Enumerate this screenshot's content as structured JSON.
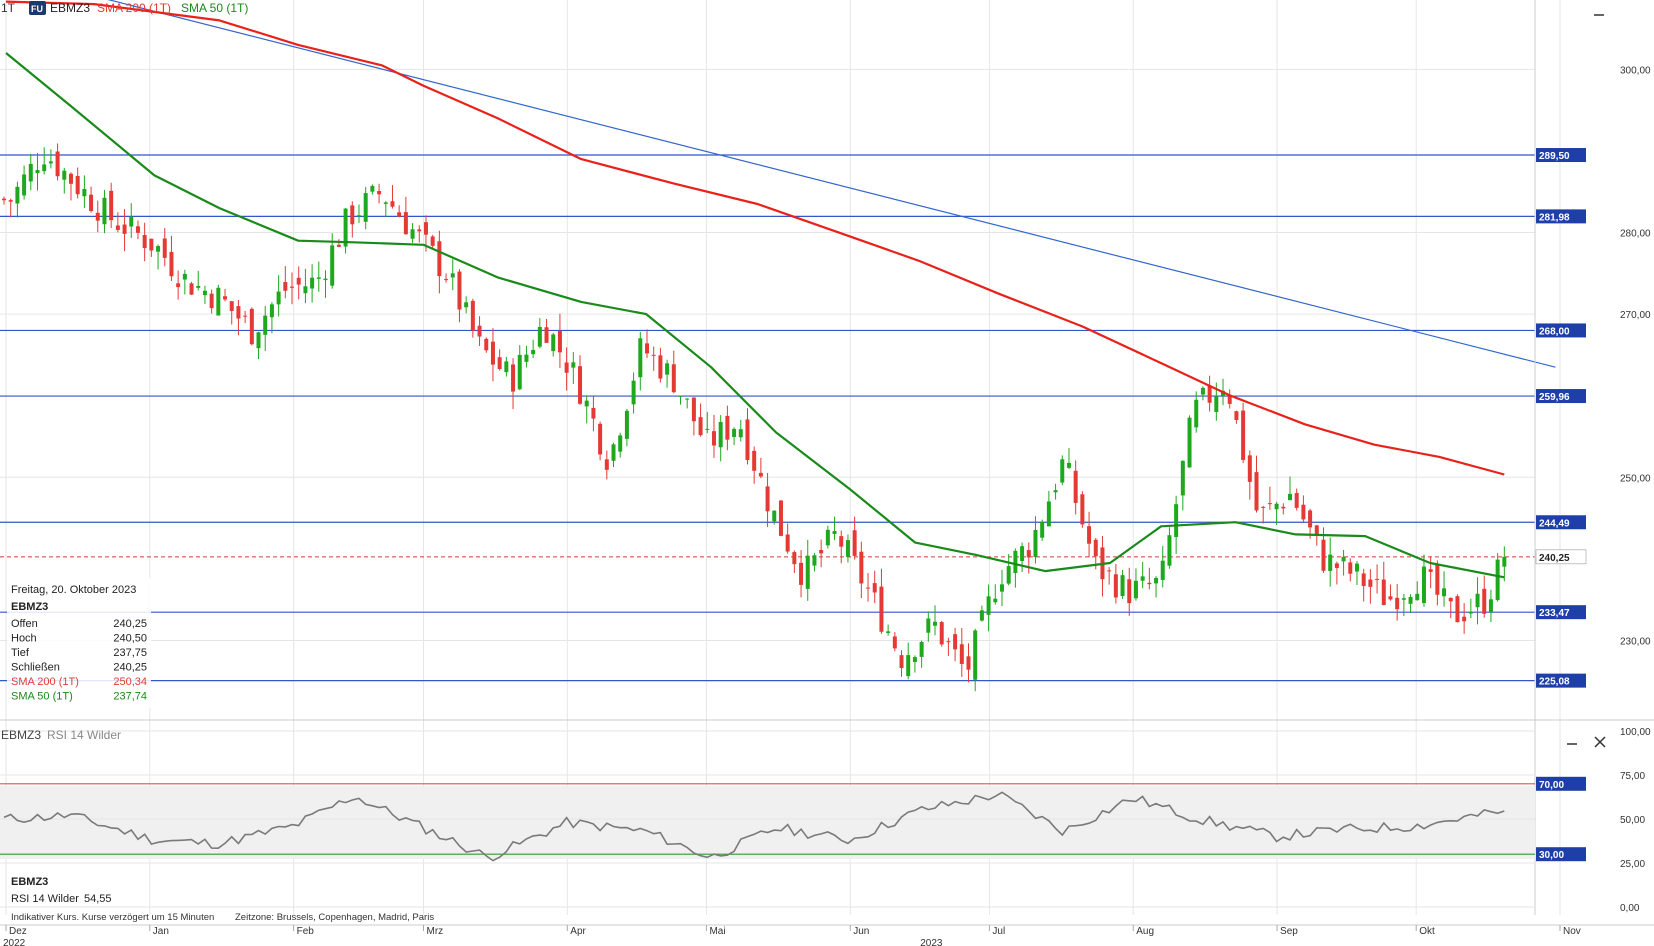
{
  "header": {
    "interval": "1T",
    "badge": "FU",
    "symbol": "EBMZ3",
    "sma200_label": "SMA 200 (1T)",
    "sma50_label": "SMA 50 (1T)"
  },
  "colors": {
    "up": "#1ea81e",
    "down": "#e53935",
    "sma200": "#e8221a",
    "sma50": "#1a8a1a",
    "level": "#3355cc",
    "trend": "#3366cc",
    "rsi": "#7a7a7a",
    "rsi_upper": "#d9534f",
    "rsi_lower": "#2e9e2e"
  },
  "info_box": {
    "date": "Freitag, 20. Oktober 2023",
    "symbol": "EBMZ3",
    "rows": [
      {
        "label": "Offen",
        "value": "240,25",
        "color": "#222222"
      },
      {
        "label": "Hoch",
        "value": "240,50",
        "color": "#222222"
      },
      {
        "label": "Tief",
        "value": "237,75",
        "color": "#222222"
      },
      {
        "label": "Schließen",
        "value": "240,25",
        "color": "#222222"
      },
      {
        "label": "SMA 200 (1T)",
        "value": "250,34",
        "color": "#e53935"
      },
      {
        "label": "SMA 50 (1T)",
        "value": "237,74",
        "color": "#1a8a1a"
      }
    ]
  },
  "rsi_panel": {
    "title_symbol": "EBMZ3",
    "title_indicator": "RSI 14 Wilder",
    "info_symbol": "EBMZ3",
    "info_label": "RSI 14 Wilder",
    "info_value": "54,55"
  },
  "footer": {
    "note": "Indikativer Kurs. Kurse verzögert um 15 Minuten",
    "timezone": "Zeitzone: Brussels, Copenhagen, Madrid, Paris"
  },
  "x_axis": {
    "months": [
      "Dez",
      "Jan",
      "Feb",
      "Mrz",
      "Apr",
      "Mai",
      "Jun",
      "Jul",
      "Aug",
      "Sep",
      "Okt",
      "Nov"
    ],
    "years": [
      "2022",
      "2023"
    ]
  },
  "price_axis": {
    "ticks": [
      "300,00",
      "280,00",
      "270,00",
      "250,00",
      "230,00"
    ]
  },
  "rsi_axis": {
    "ticks": [
      "100,00",
      "75,00",
      "50,00",
      "25,00",
      "0,00"
    ]
  },
  "levels": [
    {
      "label": "289,50"
    },
    {
      "label": "281,98"
    },
    {
      "label": "268,00"
    },
    {
      "label": "259,96"
    },
    {
      "label": "244,49"
    },
    {
      "label": "233,47"
    },
    {
      "label": "225,08"
    }
  ],
  "last_price": {
    "label": "240,25"
  },
  "rsi_levels": [
    {
      "label": "70,00"
    },
    {
      "label": "30,00"
    }
  ],
  "chart_data": {
    "type": "candlestick",
    "symbol": "EBMZ3",
    "interval": "1T",
    "ylim": [
      220.5,
      308.5
    ],
    "rsi_ylim": [
      0,
      100
    ],
    "horizontal_levels": [
      289.5,
      281.98,
      268.0,
      259.96,
      244.49,
      233.47,
      225.08
    ],
    "last_close": 240.25,
    "trend_line": {
      "start": {
        "date": "2022-12-13",
        "value": 310.0
      },
      "end": {
        "date": "2023-10-31",
        "value": 263.5
      }
    },
    "ohlc_last": {
      "date": "2023-10-20",
      "open": 240.25,
      "high": 240.5,
      "low": 237.75,
      "close": 240.25
    },
    "sma200_last": 250.34,
    "sma50_last": 237.74,
    "rsi_last": 54.55,
    "rsi_levels": [
      70,
      30
    ],
    "series": [
      {
        "name": "SMA 200 (1T)",
        "points": [
          [
            "2022-12-01",
            308.3
          ],
          [
            "2022-12-20",
            308.0
          ],
          [
            "2023-01-16",
            306.0
          ],
          [
            "2023-02-02",
            303.0
          ],
          [
            "2023-02-20",
            300.5
          ],
          [
            "2023-03-01",
            298.0
          ],
          [
            "2023-03-17",
            294.0
          ],
          [
            "2023-04-04",
            289.0
          ],
          [
            "2023-04-24",
            286.0
          ],
          [
            "2023-05-12",
            283.5
          ],
          [
            "2023-06-01",
            279.5
          ],
          [
            "2023-06-16",
            276.5
          ],
          [
            "2023-07-03",
            272.5
          ],
          [
            "2023-07-21",
            268.5
          ],
          [
            "2023-08-07",
            264.0
          ],
          [
            "2023-08-22",
            260.0
          ],
          [
            "2023-09-07",
            256.5
          ],
          [
            "2023-09-22",
            254.0
          ],
          [
            "2023-10-06",
            252.5
          ],
          [
            "2023-10-20",
            250.34
          ]
        ]
      },
      {
        "name": "SMA 50 (1T)",
        "points": [
          [
            "2022-12-01",
            302.0
          ],
          [
            "2022-12-15",
            295.5
          ],
          [
            "2023-01-02",
            287.0
          ],
          [
            "2023-01-16",
            283.0
          ],
          [
            "2023-02-02",
            279.0
          ],
          [
            "2023-02-14",
            278.8
          ],
          [
            "2023-03-01",
            278.5
          ],
          [
            "2023-03-17",
            274.5
          ],
          [
            "2023-04-04",
            271.5
          ],
          [
            "2023-04-18",
            270.0
          ],
          [
            "2023-05-02",
            263.5
          ],
          [
            "2023-05-16",
            255.5
          ],
          [
            "2023-06-01",
            248.5
          ],
          [
            "2023-06-15",
            242.0
          ],
          [
            "2023-06-28",
            240.5
          ],
          [
            "2023-07-13",
            238.5
          ],
          [
            "2023-07-27",
            239.5
          ],
          [
            "2023-08-07",
            244.0
          ],
          [
            "2023-08-23",
            244.5
          ],
          [
            "2023-09-05",
            243.0
          ],
          [
            "2023-09-20",
            242.8
          ],
          [
            "2023-10-04",
            239.5
          ],
          [
            "2023-10-20",
            237.74
          ]
        ]
      }
    ],
    "ohlc_sampled_closes": [
      [
        "2022-12-02",
        284.0
      ],
      [
        "2022-12-09",
        290.0
      ],
      [
        "2022-12-16",
        286.0
      ],
      [
        "2022-12-23",
        282.0
      ],
      [
        "2023-01-02",
        278.5
      ],
      [
        "2023-01-09",
        274.0
      ],
      [
        "2023-01-16",
        272.0
      ],
      [
        "2023-01-23",
        268.0
      ],
      [
        "2023-01-30",
        273.0
      ],
      [
        "2023-02-06",
        274.0
      ],
      [
        "2023-02-13",
        282.0
      ],
      [
        "2023-02-20",
        285.0
      ],
      [
        "2023-02-27",
        280.0
      ],
      [
        "2023-03-06",
        275.0
      ],
      [
        "2023-03-13",
        266.0
      ],
      [
        "2023-03-20",
        262.0
      ],
      [
        "2023-03-27",
        269.0
      ],
      [
        "2023-04-03",
        262.0
      ],
      [
        "2023-04-10",
        252.0
      ],
      [
        "2023-04-17",
        266.0
      ],
      [
        "2023-04-24",
        262.0
      ],
      [
        "2023-05-01",
        254.0
      ],
      [
        "2023-05-08",
        257.0
      ],
      [
        "2023-05-15",
        246.0
      ],
      [
        "2023-05-22",
        238.0
      ],
      [
        "2023-05-29",
        243.0
      ],
      [
        "2023-06-05",
        236.0
      ],
      [
        "2023-06-12",
        228.0
      ],
      [
        "2023-06-19",
        232.0
      ],
      [
        "2023-06-26",
        226.0
      ],
      [
        "2023-07-03",
        238.0
      ],
      [
        "2023-07-10",
        242.0
      ],
      [
        "2023-07-17",
        252.0
      ],
      [
        "2023-07-24",
        239.0
      ],
      [
        "2023-07-31",
        236.0
      ],
      [
        "2023-08-07",
        237.0
      ],
      [
        "2023-08-14",
        258.0
      ],
      [
        "2023-08-21",
        262.0
      ],
      [
        "2023-08-28",
        245.0
      ],
      [
        "2023-09-04",
        248.0
      ],
      [
        "2023-09-11",
        240.0
      ],
      [
        "2023-09-18",
        238.0
      ],
      [
        "2023-09-25",
        235.0
      ],
      [
        "2023-10-02",
        238.0
      ],
      [
        "2023-10-09",
        233.0
      ],
      [
        "2023-10-16",
        235.0
      ],
      [
        "2023-10-20",
        240.25
      ]
    ],
    "rsi_sampled": [
      [
        "2022-12-01",
        50
      ],
      [
        "2022-12-15",
        52
      ],
      [
        "2023-01-02",
        38
      ],
      [
        "2023-01-16",
        36
      ],
      [
        "2023-02-01",
        46
      ],
      [
        "2023-02-14",
        63
      ],
      [
        "2023-03-01",
        45
      ],
      [
        "2023-03-15",
        28
      ],
      [
        "2023-04-01",
        48
      ],
      [
        "2023-04-18",
        43
      ],
      [
        "2023-05-02",
        28
      ],
      [
        "2023-05-16",
        45
      ],
      [
        "2023-06-01",
        38
      ],
      [
        "2023-06-16",
        55
      ],
      [
        "2023-07-03",
        64
      ],
      [
        "2023-07-17",
        43
      ],
      [
        "2023-08-01",
        62
      ],
      [
        "2023-08-15",
        50
      ],
      [
        "2023-09-01",
        40
      ],
      [
        "2023-09-15",
        44
      ],
      [
        "2023-10-01",
        46
      ],
      [
        "2023-10-20",
        54.55
      ]
    ]
  }
}
